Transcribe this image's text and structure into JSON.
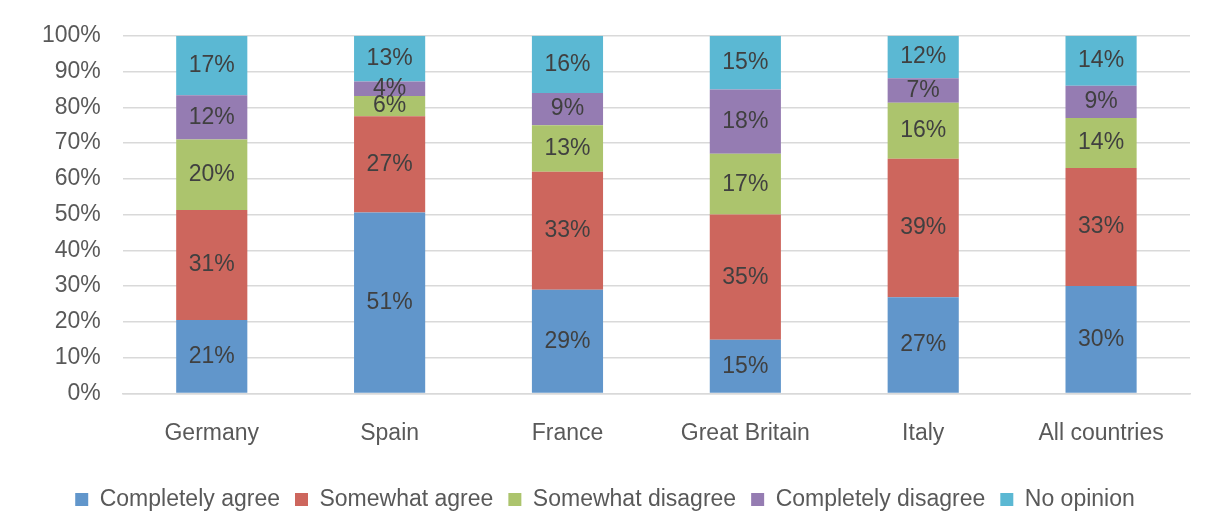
{
  "chart_data": {
    "type": "bar",
    "stacked": true,
    "categories": [
      "Germany",
      "Spain",
      "France",
      "Great Britain",
      "Italy",
      "All countries"
    ],
    "series": [
      {
        "name": "Completely agree",
        "color": "#6196cb",
        "values": [
          20.5,
          50.6,
          29,
          15,
          26.9,
          30
        ],
        "value_labels": [
          "21%",
          "51%",
          "29%",
          "15%",
          "27%",
          "30%"
        ]
      },
      {
        "name": "Somewhat agree",
        "color": "#cd665d",
        "values": [
          30.8,
          26.9,
          33,
          35,
          38.7,
          33
        ],
        "value_labels": [
          "31%",
          "27%",
          "33%",
          "35%",
          "39%",
          "33%"
        ]
      },
      {
        "name": "Somewhat disagree",
        "color": "#acc46d",
        "values": [
          19.7,
          5.7,
          13,
          17,
          15.7,
          14
        ],
        "value_labels": [
          "20%",
          "6%",
          "13%",
          "17%",
          "16%",
          "14%"
        ]
      },
      {
        "name": "Completely disagree",
        "color": "#957cb2",
        "values": [
          12.4,
          4,
          9,
          18,
          6.8,
          9
        ],
        "value_labels": [
          "12%",
          "4%",
          "9%",
          "18%",
          "7%",
          "9%"
        ]
      },
      {
        "name": "No opinion",
        "color": "#5bb8d3",
        "values": [
          16.6,
          12.8,
          16,
          15,
          11.9,
          14
        ],
        "value_labels": [
          "17%",
          "13%",
          "16%",
          "15%",
          "12%",
          "14%"
        ]
      }
    ],
    "ylim": [
      0,
      100
    ],
    "yticks": [
      {
        "value": 0,
        "label": "0%"
      },
      {
        "value": 10,
        "label": "10%"
      },
      {
        "value": 20,
        "label": "20%"
      },
      {
        "value": 30,
        "label": "30%"
      },
      {
        "value": 40,
        "label": "40%"
      },
      {
        "value": 50,
        "label": "50%"
      },
      {
        "value": 60,
        "label": "60%"
      },
      {
        "value": 70,
        "label": "70%"
      },
      {
        "value": 80,
        "label": "80%"
      },
      {
        "value": 90,
        "label": "90%"
      },
      {
        "value": 100,
        "label": "100%"
      }
    ],
    "grid": "y",
    "legend": "bottom"
  }
}
